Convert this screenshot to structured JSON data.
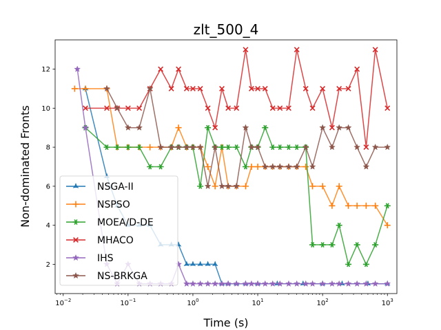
{
  "chart_data": {
    "type": "line",
    "title": "zlt_500_4",
    "xlabel": "Time (s)",
    "ylabel": "Non-dominated Fronts",
    "xscale": "log",
    "xlim": [
      0.0075,
      1400
    ],
    "ylim": [
      0.5,
      13.5
    ],
    "xticks": [
      {
        "value": 0.01,
        "base": "10",
        "exp": "−2"
      },
      {
        "value": 0.1,
        "base": "10",
        "exp": "−1"
      },
      {
        "value": 1,
        "base": "10",
        "exp": "0"
      },
      {
        "value": 10,
        "base": "10",
        "exp": "1"
      },
      {
        "value": 100,
        "base": "10",
        "exp": "2"
      },
      {
        "value": 1000,
        "base": "10",
        "exp": "3"
      }
    ],
    "yticks": [
      2,
      4,
      6,
      8,
      10,
      12
    ],
    "legend_position": "lower-left",
    "series": [
      {
        "name": "NSGA-II",
        "color": "#1f77b4",
        "marker": "star4",
        "x": [
          0.022,
          0.047,
          0.068,
          0.1,
          0.149,
          0.218,
          0.318,
          0.465,
          0.6,
          0.8,
          1.0,
          1.3,
          1.7,
          2.2,
          2.8,
          3.5,
          4.7,
          6.5,
          10,
          20,
          50,
          100,
          200,
          500,
          1000
        ],
        "y": [
          11,
          6.5,
          5,
          4,
          4,
          4,
          3,
          3,
          3,
          2,
          2,
          2,
          2,
          2,
          1,
          1,
          1,
          1,
          1,
          1,
          1,
          1,
          1,
          1,
          1
        ]
      },
      {
        "name": "NSPSO",
        "color": "#ff7f0e",
        "marker": "plus",
        "x": [
          0.015,
          0.022,
          0.047,
          0.068,
          0.1,
          0.149,
          0.218,
          0.318,
          0.465,
          0.6,
          0.8,
          1.0,
          1.3,
          1.7,
          2.2,
          2.8,
          3.5,
          4.7,
          6.5,
          8,
          10,
          13,
          17,
          22,
          30,
          40,
          55,
          70,
          100,
          140,
          180,
          250,
          340,
          470,
          650,
          1000
        ],
        "y": [
          11,
          11,
          11,
          8,
          8,
          8,
          8,
          8,
          8,
          9,
          8,
          8,
          8,
          7,
          6,
          8,
          6,
          6,
          6,
          7,
          7,
          7,
          7,
          7,
          7,
          7,
          7,
          6,
          6,
          5,
          6,
          5,
          5,
          5,
          5,
          4
        ]
      },
      {
        "name": "MOEA/D-DE",
        "color": "#2ca02c",
        "marker": "asterisk",
        "x": [
          0.022,
          0.047,
          0.068,
          0.1,
          0.149,
          0.218,
          0.318,
          0.465,
          0.6,
          0.8,
          1.0,
          1.3,
          1.7,
          2.2,
          2.8,
          3.5,
          4.7,
          6.5,
          8,
          10,
          13,
          17,
          22,
          30,
          40,
          55,
          70,
          100,
          140,
          180,
          250,
          340,
          470,
          650,
          1000
        ],
        "y": [
          9,
          8,
          8,
          8,
          8,
          7,
          7,
          8,
          8,
          8,
          8,
          6,
          9,
          8,
          8,
          8,
          8,
          7,
          8,
          8,
          9,
          8,
          8,
          8,
          8,
          8,
          3,
          3,
          3,
          4,
          2,
          3,
          2,
          3,
          5
        ]
      },
      {
        "name": "MHACO",
        "color": "#d62728",
        "marker": "cross",
        "x": [
          0.022,
          0.047,
          0.068,
          0.1,
          0.149,
          0.218,
          0.318,
          0.465,
          0.6,
          0.8,
          1.0,
          1.3,
          1.7,
          2.2,
          2.8,
          3.5,
          4.7,
          6.5,
          8,
          10,
          13,
          17,
          22,
          30,
          40,
          55,
          70,
          100,
          140,
          180,
          250,
          340,
          470,
          650,
          1000
        ],
        "y": [
          10,
          10,
          10,
          10,
          10,
          11,
          12,
          11,
          12,
          11,
          11,
          11,
          10,
          9,
          11,
          10,
          10,
          13,
          11,
          11,
          11,
          10,
          10,
          10,
          13,
          11,
          10,
          11,
          9,
          11,
          11,
          12,
          8,
          13,
          10
        ]
      },
      {
        "name": "IHS",
        "color": "#9467bd",
        "marker": "star",
        "x": [
          0.0165,
          0.022,
          0.047,
          0.068,
          0.1,
          0.149,
          0.218,
          0.318,
          0.465,
          0.6,
          0.8,
          1.0,
          1.3,
          1.7,
          2.2,
          2.8,
          3.5,
          4.7,
          6.5,
          8,
          10,
          13,
          17,
          22,
          30,
          40,
          55,
          70,
          100,
          140,
          180,
          250,
          340,
          470,
          650,
          1000
        ],
        "y": [
          12,
          9,
          2,
          1,
          2,
          1,
          1,
          1,
          1,
          2,
          1,
          1,
          1,
          1,
          1,
          1,
          1,
          1,
          1,
          1,
          1,
          1,
          1,
          1,
          1,
          1,
          1,
          1,
          1,
          1,
          1,
          1,
          1,
          1,
          1,
          1
        ]
      },
      {
        "name": "NS-BRKGA",
        "color": "#8c564b",
        "marker": "star",
        "x": [
          0.047,
          0.068,
          0.1,
          0.149,
          0.218,
          0.318,
          0.465,
          0.6,
          0.8,
          1.0,
          1.3,
          1.7,
          2.2,
          2.8,
          3.5,
          4.7,
          6.5,
          8,
          10,
          13,
          17,
          22,
          30,
          40,
          55,
          70,
          100,
          140,
          180,
          250,
          340,
          470,
          650,
          1000
        ],
        "y": [
          11,
          10,
          9,
          9,
          11,
          8,
          8,
          8,
          8,
          8,
          8,
          6,
          8,
          6,
          6,
          6,
          9,
          8,
          8,
          7,
          7,
          7,
          7,
          7,
          8,
          7,
          9,
          8,
          9,
          9,
          8,
          7,
          8,
          8
        ]
      }
    ]
  }
}
